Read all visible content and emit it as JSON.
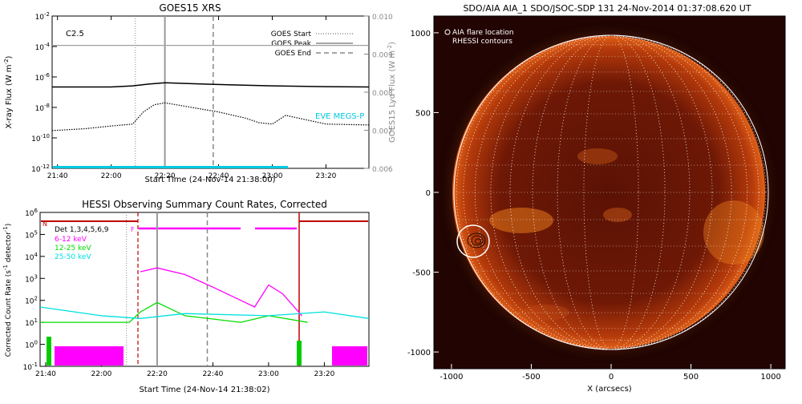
{
  "chart_data": [
    {
      "type": "line",
      "title": "GOES15 XRS",
      "class_label": "C2.5",
      "xlabel": "Start Time (24-Nov-14 21:38:00)",
      "ylabel_left": "X-ray Flux (W m",
      "ylabel_left_sup": "-2",
      "ylabel_right": "GOES15 Lyα Flux (W m",
      "ylabel_right_sup": "-2",
      "x_ticks": [
        "21:40",
        "22:00",
        "22:20",
        "22:40",
        "23:00",
        "23:20"
      ],
      "y_ticks_left": [
        {
          "base": "10",
          "exp": "-2"
        },
        {
          "base": "10",
          "exp": "-4"
        },
        {
          "base": "10",
          "exp": "-6"
        },
        {
          "base": "10",
          "exp": "-8"
        },
        {
          "base": "10",
          "exp": "-10"
        },
        {
          "base": "10",
          "exp": "-12"
        }
      ],
      "y_ticks_right": [
        "0.010",
        "0.009",
        "0.008",
        "0.007",
        "0.006"
      ],
      "legend": [
        {
          "label": "GOES Start",
          "style": "dotted"
        },
        {
          "label": "GOES Peak",
          "style": "solid"
        },
        {
          "label": "GOES End",
          "style": "dashed"
        }
      ],
      "annotation": "EVE MEGS-P",
      "annotation_color": "#00c8e0",
      "markers": {
        "start": "22:09",
        "peak": "22:20",
        "end": "22:38"
      },
      "series": [
        {
          "kind": "long",
          "style": "solid",
          "color": "#000000",
          "x": [
            "21:38",
            "22:00",
            "22:08",
            "22:14",
            "22:20",
            "22:30",
            "22:45",
            "23:00",
            "23:20",
            "23:36"
          ],
          "y": [
            2.2e-07,
            2.2e-07,
            2.6e-07,
            3.4e-07,
            4.2e-07,
            3.6e-07,
            3e-07,
            2.6e-07,
            2.3e-07,
            2.2e-07
          ]
        },
        {
          "kind": "short",
          "style": "dotted",
          "color": "#000000",
          "x": [
            "21:38",
            "21:50",
            "22:00",
            "22:08",
            "22:12",
            "22:16",
            "22:20",
            "22:30",
            "22:40",
            "22:50",
            "22:55",
            "23:00",
            "23:05",
            "23:20",
            "23:36"
          ],
          "y": [
            3e-10,
            4e-10,
            6e-10,
            8e-10,
            5e-09,
            1.5e-08,
            2e-08,
            1e-08,
            5e-09,
            2e-09,
            1e-09,
            8e-10,
            3e-09,
            8e-10,
            7e-10
          ]
        },
        {
          "kind": "lyman-alpha",
          "style": "solid",
          "color": "#a0a0a0",
          "x": [
            "21:38",
            "23:36"
          ],
          "y": [
            0.00923,
            0.00923
          ]
        }
      ]
    },
    {
      "type": "line",
      "title": "HESSI Observing Summary Count Rates, Corrected",
      "xlabel": "Start Time (24-Nov-14 21:38:02)",
      "ylabel": "Corrected Count Rate (s",
      "ylabel_sup": "-1",
      "ylabel_end": " detector",
      "ylabel_end_sup": "-1",
      "ylabel_close": ")",
      "x_ticks": [
        "21:40",
        "22:00",
        "22:20",
        "22:40",
        "23:00",
        "23:20"
      ],
      "y_ticks": [
        {
          "base": "10",
          "exp": "6"
        },
        {
          "base": "10",
          "exp": "5"
        },
        {
          "base": "10",
          "exp": "4"
        },
        {
          "base": "10",
          "exp": "3"
        },
        {
          "base": "10",
          "exp": "2"
        },
        {
          "base": "10",
          "exp": "1"
        },
        {
          "base": "10",
          "exp": "0"
        },
        {
          "base": "10",
          "exp": "-1"
        }
      ],
      "detectors": "Det 1,3,4,5,6,9",
      "flags": {
        "night": "N",
        "flare": "F"
      },
      "legend": [
        {
          "label": "6-12 keV",
          "color": "#ff00ff"
        },
        {
          "label": "12-25 keV",
          "color": "#00dd00"
        },
        {
          "label": "25-50 keV",
          "color": "#00e0e0"
        }
      ],
      "series": [
        {
          "name": "6-12 keV",
          "color": "#ff00ff",
          "x": [
            "22:14",
            "22:20",
            "22:30",
            "22:40",
            "22:50",
            "22:55",
            "23:00",
            "23:05",
            "23:12"
          ],
          "y": [
            2000.0,
            3000.0,
            1500.0,
            400.0,
            100.0,
            50,
            500.0,
            200.0,
            20
          ]
        },
        {
          "name": "12-25 keV",
          "color": "#00dd00",
          "x": [
            "21:38",
            "22:10",
            "22:14",
            "22:20",
            "22:30",
            "22:50",
            "23:00",
            "23:14"
          ],
          "y": [
            10,
            10,
            30,
            80,
            20,
            10,
            20,
            10
          ]
        },
        {
          "name": "25-50 keV",
          "color": "#00e0e0",
          "x": [
            "21:38",
            "22:00",
            "22:14",
            "22:30",
            "23:00",
            "23:20",
            "23:36"
          ],
          "y": [
            50,
            20,
            15,
            25,
            20,
            30,
            15
          ]
        }
      ]
    },
    {
      "type": "heatmap",
      "title": "SDO/AIA AIA_1 SDO/JSOC-SDP 131 24-Nov-2014 01:37:08.620 UT",
      "xlabel": "X (arcsecs)",
      "x_ticks": [
        "-1000",
        "-500",
        "0",
        "500",
        "1000"
      ],
      "y_ticks": [
        "1000",
        "500",
        "0",
        "-500",
        "-1000"
      ],
      "legend": [
        {
          "label": "AIA flare location",
          "marker": "circle"
        },
        {
          "label": "RHESSI contours"
        }
      ],
      "flare_location": {
        "x": -880,
        "y": -320
      },
      "solar_radius_arcsec": 970
    }
  ]
}
